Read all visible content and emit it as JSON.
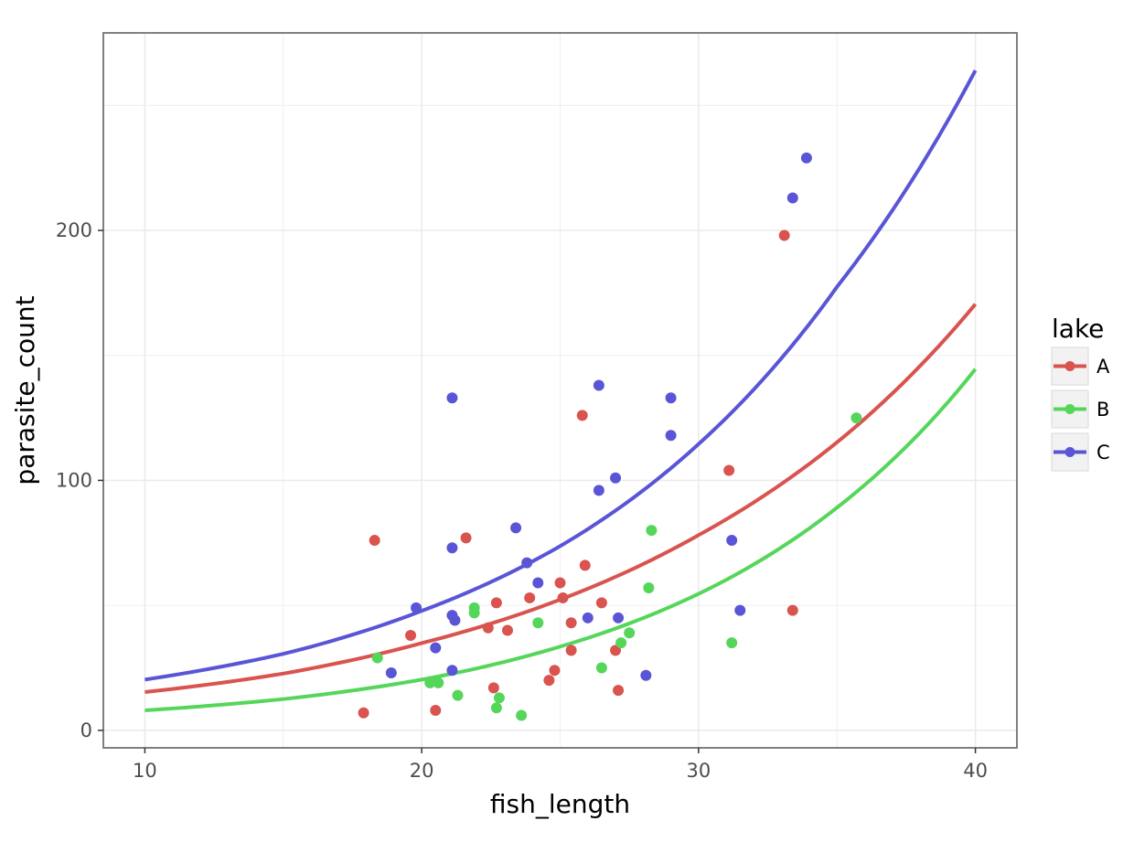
{
  "chart_data": {
    "type": "scatter",
    "xlabel": "fish_length",
    "ylabel": "parasite_count",
    "xlim": [
      8.5,
      41.5
    ],
    "ylim": [
      -7,
      279
    ],
    "x_ticks": [
      10,
      20,
      30,
      40
    ],
    "x_tick_labels": [
      "10",
      "20",
      "30",
      "40"
    ],
    "y_ticks": [
      0,
      100,
      200
    ],
    "y_tick_labels": [
      "0",
      "100",
      "200"
    ],
    "grid": true,
    "legend": {
      "title": "lake",
      "position": "right"
    },
    "series": [
      {
        "name": "A",
        "color": "#d9534f",
        "points": [
          {
            "x": 17.9,
            "y": 7
          },
          {
            "x": 18.3,
            "y": 76
          },
          {
            "x": 19.6,
            "y": 38
          },
          {
            "x": 20.5,
            "y": 8
          },
          {
            "x": 21.6,
            "y": 77
          },
          {
            "x": 22.4,
            "y": 41
          },
          {
            "x": 22.6,
            "y": 17
          },
          {
            "x": 22.7,
            "y": 51
          },
          {
            "x": 23.1,
            "y": 40
          },
          {
            "x": 23.9,
            "y": 53
          },
          {
            "x": 24.6,
            "y": 20
          },
          {
            "x": 24.8,
            "y": 24
          },
          {
            "x": 25.0,
            "y": 59
          },
          {
            "x": 25.1,
            "y": 53
          },
          {
            "x": 25.4,
            "y": 43
          },
          {
            "x": 25.4,
            "y": 32
          },
          {
            "x": 25.8,
            "y": 126
          },
          {
            "x": 25.9,
            "y": 66
          },
          {
            "x": 26.5,
            "y": 51
          },
          {
            "x": 27.0,
            "y": 32
          },
          {
            "x": 27.1,
            "y": 16
          },
          {
            "x": 31.1,
            "y": 104
          },
          {
            "x": 33.1,
            "y": 198
          },
          {
            "x": 33.4,
            "y": 48
          }
        ],
        "curve": {
          "x": [
            10,
            15,
            20,
            25,
            30,
            35,
            40
          ],
          "y": [
            15.3,
            22.7,
            34.9,
            52.3,
            78.1,
            115.2,
            170.5
          ]
        }
      },
      {
        "name": "B",
        "color": "#55d65a",
        "points": [
          {
            "x": 18.4,
            "y": 29
          },
          {
            "x": 20.3,
            "y": 19
          },
          {
            "x": 20.6,
            "y": 19
          },
          {
            "x": 21.3,
            "y": 14
          },
          {
            "x": 21.9,
            "y": 49
          },
          {
            "x": 21.9,
            "y": 47
          },
          {
            "x": 22.7,
            "y": 9
          },
          {
            "x": 22.8,
            "y": 13
          },
          {
            "x": 23.6,
            "y": 6
          },
          {
            "x": 24.2,
            "y": 43
          },
          {
            "x": 26.5,
            "y": 25
          },
          {
            "x": 27.2,
            "y": 35
          },
          {
            "x": 27.5,
            "y": 39
          },
          {
            "x": 28.2,
            "y": 57
          },
          {
            "x": 28.3,
            "y": 80
          },
          {
            "x": 31.2,
            "y": 35
          },
          {
            "x": 35.7,
            "y": 125
          }
        ],
        "curve": {
          "x": [
            10,
            15,
            20,
            25,
            30,
            35,
            40
          ],
          "y": [
            8.0,
            12.5,
            20.3,
            33.5,
            54.6,
            89.1,
            144.5
          ]
        }
      },
      {
        "name": "C",
        "color": "#5a55d6",
        "points": [
          {
            "x": 18.9,
            "y": 23
          },
          {
            "x": 19.8,
            "y": 49
          },
          {
            "x": 20.5,
            "y": 33
          },
          {
            "x": 21.1,
            "y": 133
          },
          {
            "x": 21.1,
            "y": 73
          },
          {
            "x": 21.1,
            "y": 46
          },
          {
            "x": 21.2,
            "y": 44
          },
          {
            "x": 21.1,
            "y": 24
          },
          {
            "x": 23.4,
            "y": 81
          },
          {
            "x": 23.8,
            "y": 67
          },
          {
            "x": 24.2,
            "y": 59
          },
          {
            "x": 26.0,
            "y": 45
          },
          {
            "x": 26.4,
            "y": 138
          },
          {
            "x": 26.4,
            "y": 96
          },
          {
            "x": 27.0,
            "y": 101
          },
          {
            "x": 27.1,
            "y": 45
          },
          {
            "x": 28.1,
            "y": 22
          },
          {
            "x": 29.0,
            "y": 133
          },
          {
            "x": 29.0,
            "y": 118
          },
          {
            "x": 31.2,
            "y": 76
          },
          {
            "x": 31.5,
            "y": 48
          },
          {
            "x": 33.4,
            "y": 213
          },
          {
            "x": 33.9,
            "y": 229
          }
        ],
        "curve": {
          "x": [
            10,
            15,
            20,
            25,
            30,
            35,
            40
          ],
          "y": [
            20.3,
            30.6,
            47.8,
            73.7,
            114.5,
            177.4,
            264.0
          ]
        }
      }
    ]
  }
}
